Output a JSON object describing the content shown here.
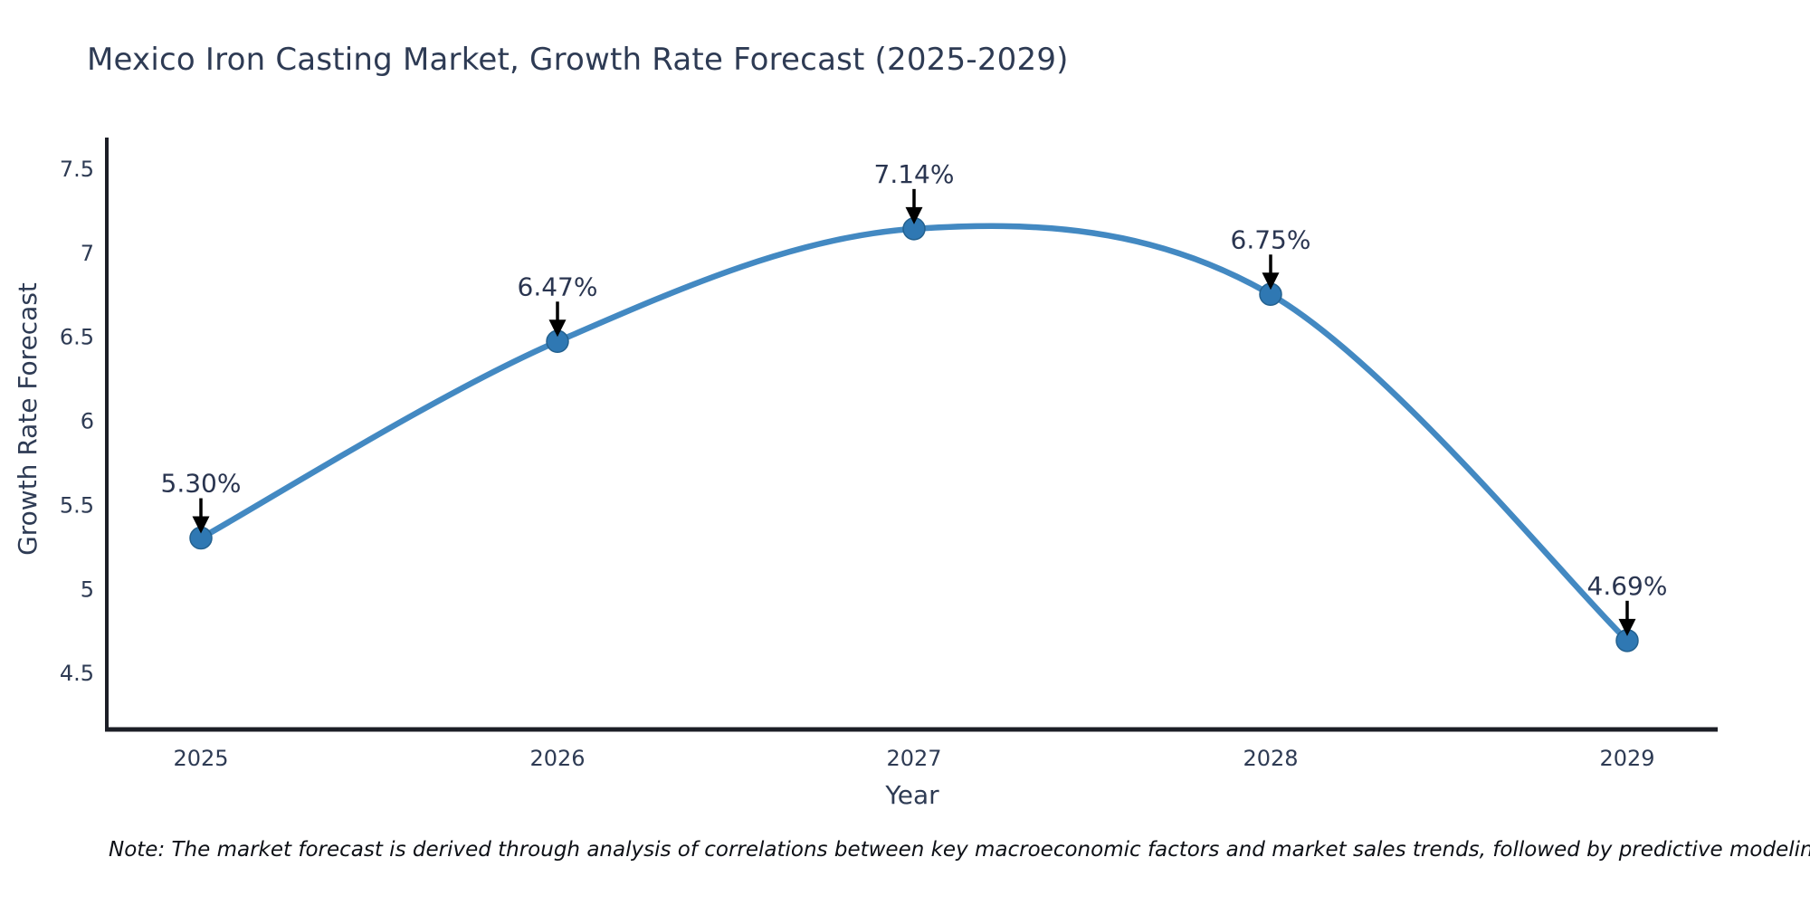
{
  "page": {
    "background": "#ffffff"
  },
  "chart_data": {
    "type": "line",
    "title": "Mexico Iron Casting Market, Growth Rate Forecast (2025-2029)",
    "xlabel": "Year",
    "ylabel": "Growth Rate Forecast",
    "categories": [
      "2025",
      "2026",
      "2027",
      "2028",
      "2029"
    ],
    "series": [
      {
        "name": "Growth Rate Forecast",
        "values": [
          5.3,
          6.47,
          7.14,
          6.75,
          4.69
        ]
      }
    ],
    "point_labels": [
      "5.30%",
      "6.47%",
      "7.14%",
      "6.75%",
      "4.69%"
    ],
    "y_ticks": [
      7.5,
      7,
      6.5,
      6,
      5.5,
      5,
      4.5
    ],
    "ylim": [
      4.16,
      7.69
    ],
    "grid": false,
    "legend_position": "none",
    "line_shape": "spline",
    "line_color": "#4389c2",
    "marker_color": "#2f78b3",
    "marker_edge_color": "#24618f",
    "annotation_arrow_color": "#000000",
    "text_color": "#2e3b54",
    "axis_line_color": "#1c1e26"
  },
  "note": {
    "text": "Note: The market forecast is derived through analysis of correlations between key macroeconomic factors and market sales trends, followed by predictive modeling to project future sales"
  }
}
